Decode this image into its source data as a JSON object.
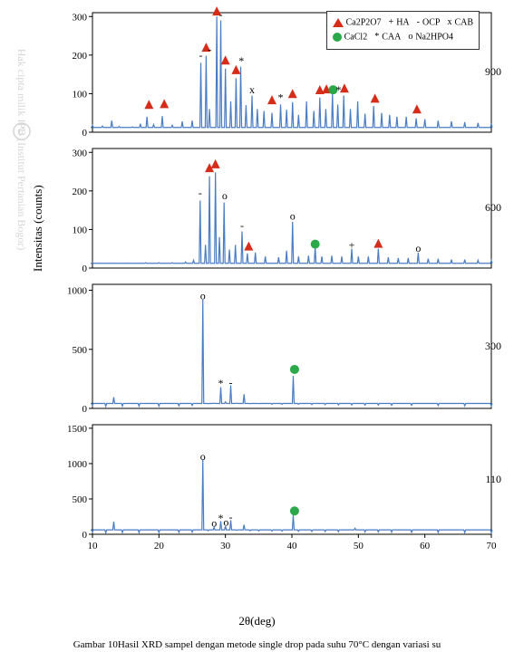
{
  "axis_labels": {
    "x": "2θ(deg)",
    "y": "Intensitas (counts)"
  },
  "caption": "Gambar 10Hasil XRD sampel dengan metode single drop pada suhu 70°C dengan variasi su",
  "watermark": {
    "circle": "C",
    "text": "Hak cipta milik IPB (Institut Pertanian Bogor)"
  },
  "x_domain": [
    10,
    70
  ],
  "x_ticks": [
    10,
    20,
    30,
    40,
    50,
    60,
    70
  ],
  "legend": {
    "rows": [
      [
        {
          "sym": "tri",
          "text": "Ca2P2O7"
        },
        {
          "sym": "txt",
          "glyph": "+",
          "text": "HA"
        },
        {
          "sym": "txt",
          "glyph": "-",
          "text": "OCP"
        },
        {
          "sym": "txt",
          "glyph": "x",
          "text": "CAB"
        }
      ],
      [
        {
          "sym": "circ",
          "text": "CaCl2"
        },
        {
          "sym": "txt",
          "glyph": "*",
          "text": "CAA"
        },
        {
          "sym": "txt",
          "glyph": "o",
          "text": "Na2HPO4"
        }
      ]
    ]
  },
  "panels": [
    {
      "temp": "900",
      "height": 150,
      "ylim": [
        0,
        310
      ],
      "y_ticks": [
        0,
        100,
        200,
        300
      ],
      "peaks": [
        [
          10,
          18
        ],
        [
          11.5,
          16
        ],
        [
          12.9,
          30
        ],
        [
          14,
          15
        ],
        [
          16,
          14
        ],
        [
          17.2,
          22
        ],
        [
          18.2,
          40
        ],
        [
          19.2,
          20
        ],
        [
          20.5,
          42
        ],
        [
          22,
          18
        ],
        [
          23.5,
          28
        ],
        [
          25,
          30
        ],
        [
          26.3,
          180
        ],
        [
          27.1,
          198
        ],
        [
          27.6,
          60
        ],
        [
          28.7,
          300
        ],
        [
          29.3,
          290
        ],
        [
          30.0,
          165
        ],
        [
          30.8,
          80
        ],
        [
          31.6,
          140
        ],
        [
          32.3,
          170
        ],
        [
          33.1,
          70
        ],
        [
          34.0,
          95
        ],
        [
          34.8,
          60
        ],
        [
          35.8,
          55
        ],
        [
          37,
          50
        ],
        [
          38.3,
          72
        ],
        [
          39.2,
          58
        ],
        [
          40.1,
          78
        ],
        [
          41,
          45
        ],
        [
          42.2,
          80
        ],
        [
          43.3,
          55
        ],
        [
          44.2,
          90
        ],
        [
          45.1,
          60
        ],
        [
          46.1,
          100
        ],
        [
          46.9,
          72
        ],
        [
          47.8,
          95
        ],
        [
          48.8,
          60
        ],
        [
          49.9,
          80
        ],
        [
          51,
          48
        ],
        [
          52.3,
          68
        ],
        [
          53.5,
          50
        ],
        [
          54.7,
          45
        ],
        [
          55.8,
          40
        ],
        [
          57.2,
          40
        ],
        [
          58.7,
          36
        ],
        [
          60,
          34
        ],
        [
          62,
          30
        ],
        [
          64,
          28
        ],
        [
          66,
          26
        ],
        [
          68,
          24
        ],
        [
          70,
          22
        ]
      ],
      "markers": [
        {
          "sym": "tri",
          "x": 18.5,
          "y": 70
        },
        {
          "sym": "tri",
          "x": 20.8,
          "y": 72
        },
        {
          "sym": "dash",
          "x": 26.3,
          "y": 200
        },
        {
          "sym": "tri",
          "x": 27.1,
          "y": 218
        },
        {
          "sym": "dash",
          "x": 27.6,
          "y": 215
        },
        {
          "sym": "tri",
          "x": 28.7,
          "y": 312
        },
        {
          "sym": "dash",
          "x": 29.3,
          "y": 305
        },
        {
          "sym": "tri",
          "x": 30.0,
          "y": 185
        },
        {
          "sym": "tri",
          "x": 31.6,
          "y": 160
        },
        {
          "sym": "star",
          "x": 32.4,
          "y": 185
        },
        {
          "sym": "x",
          "x": 34.0,
          "y": 110
        },
        {
          "sym": "tri",
          "x": 37.0,
          "y": 82
        },
        {
          "sym": "star",
          "x": 38.3,
          "y": 90
        },
        {
          "sym": "tri",
          "x": 40.1,
          "y": 98
        },
        {
          "sym": "tri",
          "x": 44.2,
          "y": 108
        },
        {
          "sym": "tri",
          "x": 45.2,
          "y": 110
        },
        {
          "sym": "circ",
          "x": 46.2,
          "y": 110
        },
        {
          "sym": "star",
          "x": 47.0,
          "y": 110
        },
        {
          "sym": "tri",
          "x": 47.9,
          "y": 112
        },
        {
          "sym": "tri",
          "x": 52.5,
          "y": 86
        },
        {
          "sym": "tri",
          "x": 58.8,
          "y": 58
        }
      ]
    },
    {
      "temp": "600",
      "height": 150,
      "ylim": [
        0,
        310
      ],
      "y_ticks": [
        0,
        100,
        200,
        300
      ],
      "peaks": [
        [
          10,
          14
        ],
        [
          12,
          12
        ],
        [
          14,
          12
        ],
        [
          16,
          12
        ],
        [
          18,
          14
        ],
        [
          20,
          14
        ],
        [
          22,
          14
        ],
        [
          24,
          16
        ],
        [
          25.2,
          20
        ],
        [
          26.2,
          175
        ],
        [
          27.0,
          60
        ],
        [
          27.6,
          238
        ],
        [
          28.5,
          248
        ],
        [
          29.1,
          80
        ],
        [
          29.8,
          170
        ],
        [
          30.6,
          48
        ],
        [
          31.5,
          60
        ],
        [
          32.5,
          95
        ],
        [
          33.3,
          38
        ],
        [
          34.5,
          40
        ],
        [
          36,
          30
        ],
        [
          38,
          28
        ],
        [
          39.2,
          45
        ],
        [
          40.1,
          120
        ],
        [
          41,
          30
        ],
        [
          42.5,
          32
        ],
        [
          43.5,
          55
        ],
        [
          44.5,
          30
        ],
        [
          46,
          32
        ],
        [
          47.5,
          30
        ],
        [
          49,
          50
        ],
        [
          50,
          30
        ],
        [
          51.5,
          30
        ],
        [
          53,
          50
        ],
        [
          54.5,
          28
        ],
        [
          56,
          26
        ],
        [
          57.5,
          26
        ],
        [
          59,
          40
        ],
        [
          60.5,
          24
        ],
        [
          62,
          24
        ],
        [
          64,
          22
        ],
        [
          66,
          22
        ],
        [
          68,
          20
        ],
        [
          70,
          20
        ]
      ],
      "markers": [
        {
          "sym": "dash",
          "x": 26.2,
          "y": 195
        },
        {
          "sym": "tri",
          "x": 27.6,
          "y": 258
        },
        {
          "sym": "tri",
          "x": 28.5,
          "y": 268
        },
        {
          "sym": "o",
          "x": 29.9,
          "y": 188
        },
        {
          "sym": "dash",
          "x": 32.5,
          "y": 110
        },
        {
          "sym": "tri",
          "x": 33.5,
          "y": 55
        },
        {
          "sym": "o",
          "x": 40.1,
          "y": 135
        },
        {
          "sym": "circ",
          "x": 43.5,
          "y": 62
        },
        {
          "sym": "plus",
          "x": 49.0,
          "y": 60
        },
        {
          "sym": "tri",
          "x": 53.0,
          "y": 62
        },
        {
          "sym": "o",
          "x": 59.0,
          "y": 52
        }
      ]
    },
    {
      "temp": "300",
      "height": 155,
      "ylim": [
        0,
        1050
      ],
      "y_ticks": [
        0,
        500,
        1000
      ],
      "peaks": [
        [
          10,
          25
        ],
        [
          12,
          18
        ],
        [
          13.2,
          95
        ],
        [
          14.5,
          20
        ],
        [
          17,
          20
        ],
        [
          20,
          20
        ],
        [
          23,
          22
        ],
        [
          25,
          25
        ],
        [
          26.6,
          920
        ],
        [
          27.4,
          40
        ],
        [
          28.3,
          45
        ],
        [
          29.3,
          180
        ],
        [
          30.0,
          55
        ],
        [
          30.8,
          195
        ],
        [
          31.7,
          45
        ],
        [
          32.8,
          120
        ],
        [
          33.7,
          40
        ],
        [
          35,
          40
        ],
        [
          37,
          35
        ],
        [
          38.5,
          35
        ],
        [
          40.2,
          275
        ],
        [
          41,
          35
        ],
        [
          43,
          32
        ],
        [
          45,
          32
        ],
        [
          47,
          30
        ],
        [
          49,
          30
        ],
        [
          51,
          28
        ],
        [
          53,
          28
        ],
        [
          55,
          26
        ],
        [
          58,
          26
        ],
        [
          62,
          24
        ],
        [
          66,
          22
        ],
        [
          70,
          20
        ]
      ],
      "markers": [
        {
          "sym": "o",
          "x": 26.6,
          "y": 955
        },
        {
          "sym": "star",
          "x": 29.3,
          "y": 215
        },
        {
          "sym": "dash",
          "x": 30.8,
          "y": 220
        },
        {
          "sym": "circ",
          "x": 40.4,
          "y": 330
        }
      ]
    },
    {
      "temp": "110",
      "height": 155,
      "ylim": [
        0,
        1550
      ],
      "y_ticks": [
        0,
        500,
        1000,
        1500
      ],
      "peaks": [
        [
          10,
          30
        ],
        [
          12,
          20
        ],
        [
          13.2,
          180
        ],
        [
          14.5,
          25
        ],
        [
          17,
          25
        ],
        [
          20,
          25
        ],
        [
          23,
          28
        ],
        [
          25,
          30
        ],
        [
          26.6,
          1060
        ],
        [
          27.4,
          50
        ],
        [
          28.3,
          100
        ],
        [
          29.3,
          185
        ],
        [
          30.0,
          115
        ],
        [
          30.8,
          200
        ],
        [
          31.7,
          55
        ],
        [
          32.8,
          135
        ],
        [
          33.7,
          50
        ],
        [
          35,
          48
        ],
        [
          37,
          45
        ],
        [
          38.5,
          45
        ],
        [
          40.2,
          270
        ],
        [
          41,
          42
        ],
        [
          43,
          40
        ],
        [
          45,
          38
        ],
        [
          47,
          36
        ],
        [
          49.5,
          85
        ],
        [
          51,
          32
        ],
        [
          53,
          32
        ],
        [
          55,
          30
        ],
        [
          58,
          28
        ],
        [
          62,
          26
        ],
        [
          66,
          24
        ],
        [
          70,
          22
        ]
      ],
      "markers": [
        {
          "sym": "o",
          "x": 26.6,
          "y": 1100
        },
        {
          "sym": "o",
          "x": 28.3,
          "y": 160
        },
        {
          "sym": "star",
          "x": 29.3,
          "y": 230
        },
        {
          "sym": "o",
          "x": 30.1,
          "y": 170
        },
        {
          "sym": "dash",
          "x": 30.8,
          "y": 245
        },
        {
          "sym": "circ",
          "x": 40.4,
          "y": 330
        }
      ]
    }
  ],
  "colors": {
    "trace": "#4a7cc4",
    "tri": "#d62c1a",
    "circ": "#2ba84a",
    "marker": "#000",
    "text": "#000"
  }
}
